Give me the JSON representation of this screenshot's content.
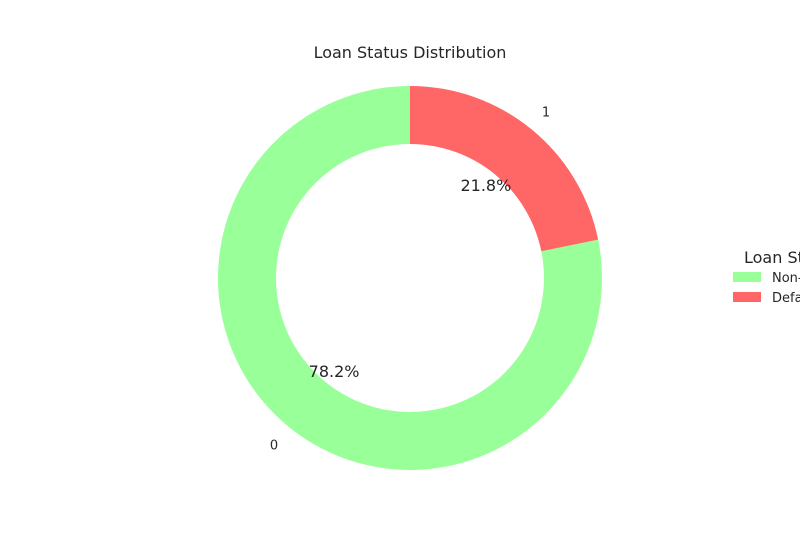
{
  "chart_data": {
    "type": "pie",
    "donut": true,
    "title": "Loan Status Distribution",
    "categories": [
      "0",
      "1"
    ],
    "values": [
      78.2,
      21.8
    ],
    "percent_labels": [
      "78.2%",
      "21.8%"
    ],
    "colors": [
      "#99ff99",
      "#ff6666"
    ],
    "legend": {
      "title": "Loan Status",
      "placement": "right",
      "entries": [
        "Non-Default",
        "Default"
      ]
    }
  }
}
